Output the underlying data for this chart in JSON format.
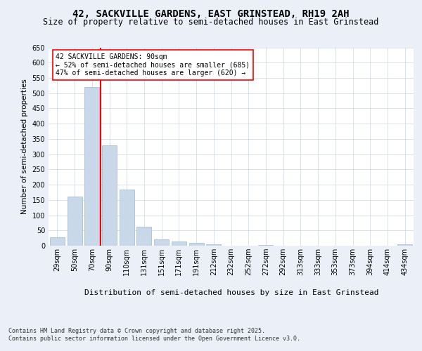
{
  "title": "42, SACKVILLE GARDENS, EAST GRINSTEAD, RH19 2AH",
  "subtitle": "Size of property relative to semi-detached houses in East Grinstead",
  "xlabel": "Distribution of semi-detached houses by size in East Grinstead",
  "ylabel": "Number of semi-detached properties",
  "categories": [
    "29sqm",
    "50sqm",
    "70sqm",
    "90sqm",
    "110sqm",
    "131sqm",
    "151sqm",
    "171sqm",
    "191sqm",
    "212sqm",
    "232sqm",
    "252sqm",
    "272sqm",
    "292sqm",
    "313sqm",
    "333sqm",
    "353sqm",
    "373sqm",
    "394sqm",
    "414sqm",
    "434sqm"
  ],
  "values": [
    28,
    160,
    520,
    330,
    185,
    63,
    20,
    13,
    10,
    5,
    1,
    0,
    3,
    0,
    0,
    0,
    0,
    0,
    0,
    0,
    4
  ],
  "bar_color": "#c8d8e8",
  "bar_edge_color": "#a0b8d0",
  "vline_x_index": 2,
  "vline_color": "red",
  "annotation_text": "42 SACKVILLE GARDENS: 90sqm\n← 52% of semi-detached houses are smaller (685)\n47% of semi-detached houses are larger (620) →",
  "annotation_box_color": "white",
  "annotation_box_edge_color": "red",
  "ylim": [
    0,
    650
  ],
  "yticks": [
    0,
    50,
    100,
    150,
    200,
    250,
    300,
    350,
    400,
    450,
    500,
    550,
    600,
    650
  ],
  "bg_color": "#eaeff8",
  "plot_bg_color": "white",
  "grid_color": "#c8d4e4",
  "footer_text": "Contains HM Land Registry data © Crown copyright and database right 2025.\nContains public sector information licensed under the Open Government Licence v3.0.",
  "title_fontsize": 10,
  "subtitle_fontsize": 8.5,
  "xlabel_fontsize": 8,
  "ylabel_fontsize": 7.5,
  "tick_fontsize": 7,
  "annotation_fontsize": 7,
  "footer_fontsize": 6
}
